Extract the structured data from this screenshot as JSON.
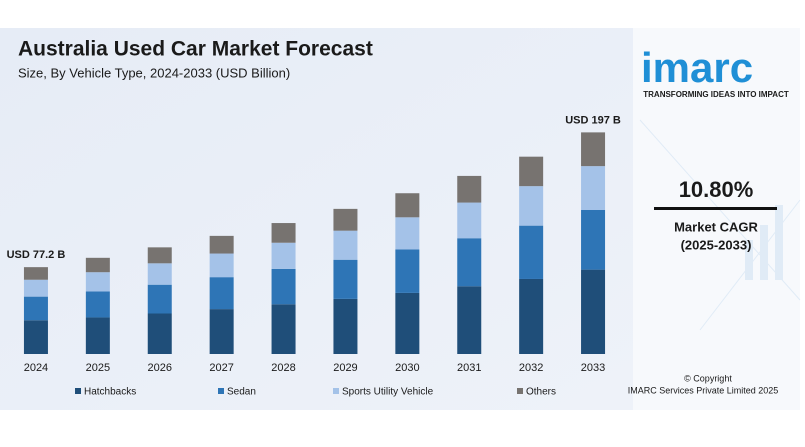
{
  "chart_data": {
    "type": "stacked_bar",
    "title": "Australia Used Car Market Forecast",
    "subtitle": "Size, By Vehicle Type, 2024-2033 (USD Billion)",
    "categories": [
      "2024",
      "2025",
      "2026",
      "2027",
      "2028",
      "2029",
      "2030",
      "2031",
      "2032",
      "2033"
    ],
    "series": [
      {
        "name": "Hatchbacks",
        "color": "#1f4e79",
        "values": [
          30,
          32.5,
          36,
          39.9,
          44.2,
          49,
          54.3,
          60.2,
          66.7,
          75
        ]
      },
      {
        "name": "Sedan",
        "color": "#2e75b6",
        "values": [
          21,
          23.1,
          25.6,
          28.4,
          31.4,
          34.8,
          38.6,
          42.7,
          47.4,
          53
        ]
      },
      {
        "name": "Sports Utility Vehicle",
        "color": "#a4c2e8",
        "values": [
          15,
          17.1,
          19,
          21,
          23.3,
          25.8,
          28.6,
          31.7,
          35.1,
          39
        ]
      },
      {
        "name": "Others",
        "color": "#777370",
        "values": [
          11.2,
          12.8,
          14.2,
          15.7,
          17.5,
          19.4,
          21.4,
          23.7,
          26.2,
          30
        ]
      }
    ],
    "ylim": [
      0,
      200
    ],
    "annotations": [
      {
        "text": "USD 77.2 B",
        "value": 77.2,
        "category": "2024"
      },
      {
        "text": "USD 197 B",
        "value": 197,
        "category": "2033"
      }
    ],
    "legend": "bottom"
  },
  "sidebar": {
    "logo": "imarc",
    "tagline": "TRANSFORMING IDEAS INTO IMPACT",
    "cagr": "10.80%",
    "cagr_label": "Market CAGR",
    "cagr_period": "(2025-2033)",
    "copyright": "© Copyright",
    "company": "IMARC Services Private Limited 2025"
  }
}
